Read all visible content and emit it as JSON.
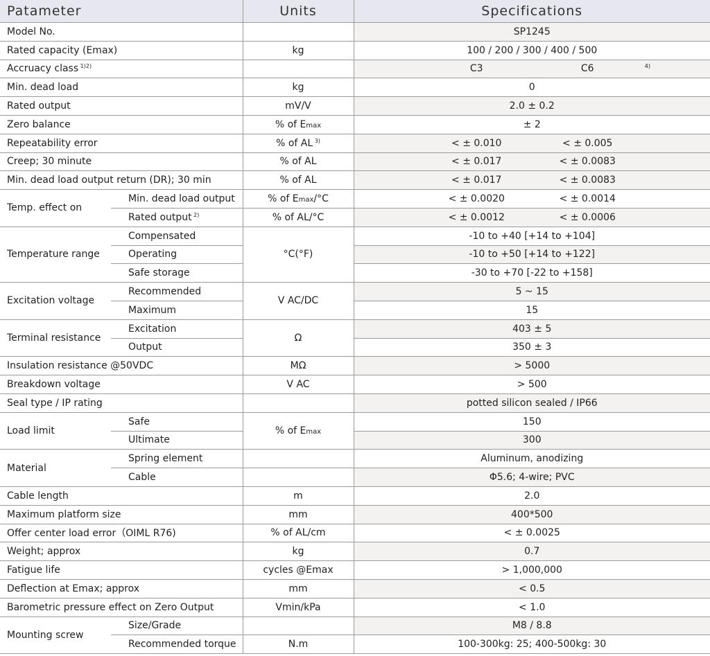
{
  "header": {
    "parameter": "Patameter",
    "units": "Units",
    "specifications": "Specifications"
  },
  "rows": [
    {
      "label": "Model No.",
      "units": "",
      "spec": "SP1245",
      "gray": true
    },
    {
      "label": "Rated capacity (Emax)",
      "units": "kg",
      "spec": "100 / 200 / 300 / 400 / 500",
      "gray": false
    },
    {
      "label": "Accruacy class",
      "label_sup": "1)2)",
      "units": "",
      "spec": [
        "C3",
        "C6"
      ],
      "spec_sup": "4)",
      "gray": true
    },
    {
      "label": "Min. dead load",
      "units": "kg",
      "spec": "0",
      "gray": false
    },
    {
      "label": "Rated output",
      "units": "mV/V",
      "spec": "2.0 ± 0.2",
      "gray": true
    },
    {
      "label": "Zero balance",
      "units": "% of E",
      "units_sub": "max",
      "spec": "± 2",
      "gray": false
    },
    {
      "label": "Repeatability error",
      "units": "% of AL",
      "units_sup": "3)",
      "spec": [
        "<  ± 0.010",
        "<  ± 0.005"
      ],
      "gray": true
    },
    {
      "label": "Creep; 30 minute",
      "units": "% of AL",
      "spec": [
        "<  ± 0.017",
        "<  ± 0.0083"
      ],
      "gray": true
    },
    {
      "label": "Min. dead load output return (DR); 30 min",
      "units": "% of AL",
      "spec": [
        "<  ± 0.017",
        "<  ± 0.0083"
      ],
      "gray": true
    },
    {
      "group": "Temp. effect on",
      "sub": [
        {
          "label": "Min. dead load output",
          "units": "% of E",
          "units_sub": "max",
          "units_after": "/°C",
          "spec": [
            "<  ± 0.0020",
            "<  ± 0.0014"
          ],
          "gray": false
        },
        {
          "label": "Rated output",
          "label_sup": "2)",
          "units": "% of AL/°C",
          "spec": [
            "<  ± 0.0012",
            "<  ± 0.0006"
          ],
          "gray": true
        }
      ]
    },
    {
      "group": "Temperature range",
      "units": "°C(°F)",
      "sub": [
        {
          "label": "Compensated",
          "spec": "-10 to +40 [+14 to +104]",
          "gray": false
        },
        {
          "label": "Operating",
          "spec": "-10  to +50 [+14 to +122]",
          "gray": true
        },
        {
          "label": "Safe storage",
          "spec": "-30 to +70 [-22 to +158]",
          "gray": false
        }
      ]
    },
    {
      "group": "Excitation voltage",
      "units": "V AC/DC",
      "sub": [
        {
          "label": "Recommended",
          "spec": "5 ~ 15",
          "gray": true
        },
        {
          "label": "Maximum",
          "spec": "15",
          "gray": false
        }
      ]
    },
    {
      "group": "Terminal resistance",
      "units": "Ω",
      "sub": [
        {
          "label": "Excitation",
          "spec": "403 ± 5",
          "gray": true
        },
        {
          "label": "Output",
          "spec": "350 ± 3",
          "gray": false
        }
      ]
    },
    {
      "label": "Insulation resistance @50VDC",
      "units": "MΩ",
      "spec": "> 5000",
      "gray": true
    },
    {
      "label": "Breakdown voltage",
      "units": "V AC",
      "spec": "> 500",
      "gray": false
    },
    {
      "label": "Seal type / IP rating",
      "units": "",
      "spec": "potted silicon sealed / IP66",
      "gray": true
    },
    {
      "group": "Load limit",
      "units": "% of E",
      "units_sub": "max",
      "sub": [
        {
          "label": "Safe",
          "spec": "150",
          "gray": false
        },
        {
          "label": "Ultimate",
          "spec": "300",
          "gray": true
        }
      ]
    },
    {
      "group": "Material",
      "sub": [
        {
          "label": "Spring element",
          "units": "",
          "spec": "Aluminum, anodizing",
          "gray": false
        },
        {
          "label": "Cable",
          "units": "",
          "spec": "Φ5.6; 4-wire; PVC",
          "gray": true
        }
      ]
    },
    {
      "label": "Cable length",
      "units": "m",
      "spec": "2.0",
      "gray": false
    },
    {
      "label": "Maximum platform size",
      "units": "mm",
      "spec": "400*500",
      "gray": true
    },
    {
      "label": "Offer center load error（OIML R76)",
      "units": "% of AL/cm",
      "spec": "<  ± 0.0025",
      "gray": false
    },
    {
      "label": "Weight; approx",
      "units": "kg",
      "spec": "0.7",
      "gray": true
    },
    {
      "label": "Fatigue life",
      "units": "cycles @Emax",
      "spec": "> 1,000,000",
      "gray": false
    },
    {
      "label": "Deflection at Emax; approx",
      "units": "mm",
      "spec": "< 0.5",
      "gray": true
    },
    {
      "label": "Barometric pressure effect on Zero Output",
      "units": "Vmin/kPa",
      "spec": "< 1.0",
      "gray": false
    },
    {
      "group": "Mounting screw",
      "sub": [
        {
          "label": "Size/Grade",
          "units": "",
          "spec": "M8 / 8.8",
          "gray": true
        },
        {
          "label": "Recommended torque",
          "units": "N.m",
          "spec": "100-300kg: 25;   400-500kg: 30",
          "gray": false
        }
      ]
    }
  ],
  "colors": {
    "header_bg": "#e6e7ef",
    "alt_row_bg": "#f3f2f1",
    "grid": "#9a9a9a"
  }
}
